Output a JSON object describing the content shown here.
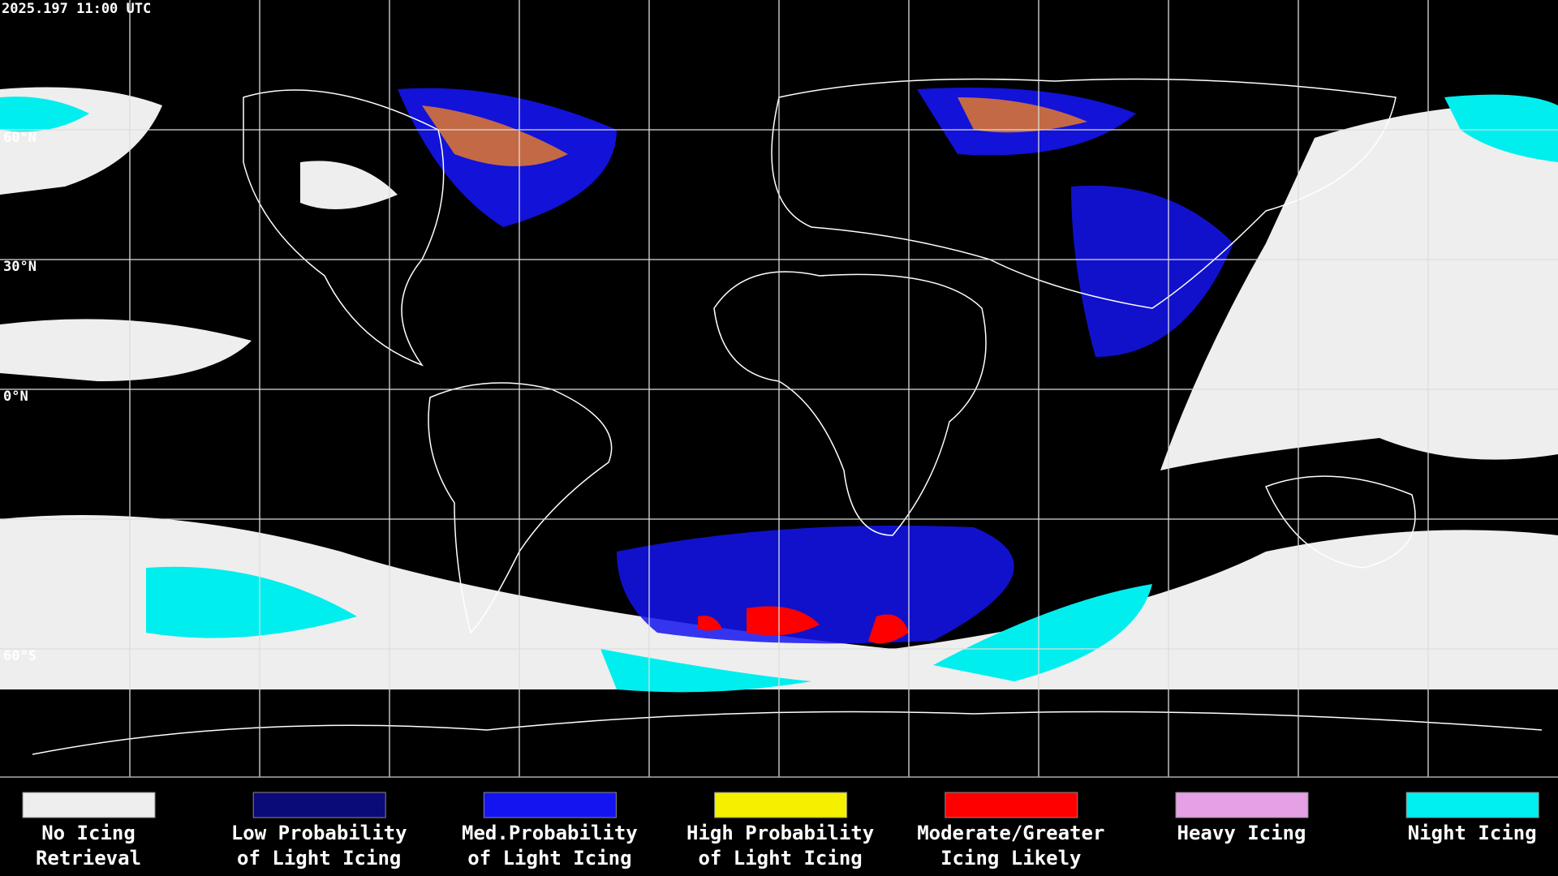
{
  "header": {
    "timestamp": "2025.197 11:00 UTC"
  },
  "map": {
    "latitude_labels": [
      "60°N",
      "30°N",
      "0°N",
      "60°S"
    ]
  },
  "legend": {
    "items": [
      {
        "color": "#eeeeee",
        "label": [
          "No Icing",
          "Retrieval"
        ]
      },
      {
        "color": "#0a0a78",
        "label": [
          "Low Probability",
          "of Light Icing"
        ]
      },
      {
        "color": "#1414f0",
        "label": [
          "Med.Probability",
          "of Light Icing"
        ]
      },
      {
        "color": "#f5f000",
        "label": [
          "High Probability",
          "of Light Icing"
        ]
      },
      {
        "color": "#ff0000",
        "label": [
          "Moderate/Greater",
          "Icing Likely"
        ]
      },
      {
        "color": "#e6a0e6",
        "label": [
          "Heavy Icing",
          ""
        ]
      },
      {
        "color": "#00f0f0",
        "label": [
          "Night Icing",
          ""
        ]
      }
    ]
  }
}
